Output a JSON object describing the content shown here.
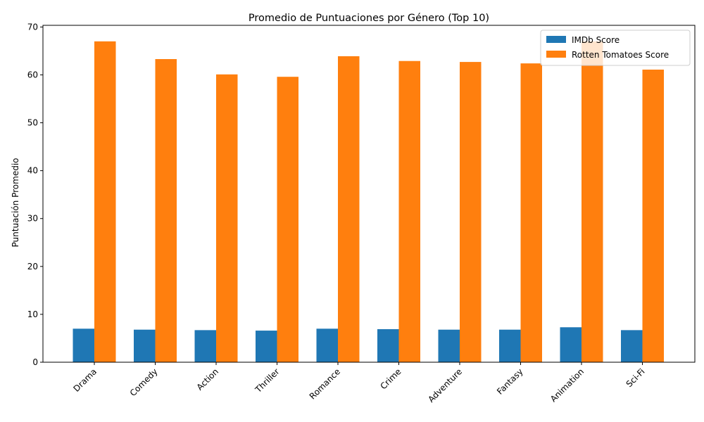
{
  "chart_data": {
    "type": "bar",
    "title": "Promedio de Puntuaciones por Género (Top 10)",
    "xlabel": "",
    "ylabel": "Puntuación Promedio",
    "categories": [
      "Drama",
      "Comedy",
      "Action",
      "Thriller",
      "Romance",
      "Crime",
      "Adventure",
      "Fantasy",
      "Animation",
      "Sci-Fi"
    ],
    "series": [
      {
        "name": "IMDb Score",
        "color": "#1f77b4",
        "values": [
          7.0,
          6.8,
          6.7,
          6.6,
          7.0,
          6.9,
          6.8,
          6.8,
          7.3,
          6.7
        ]
      },
      {
        "name": "Rotten Tomatoes Score",
        "color": "#ff7f0e",
        "values": [
          67.0,
          63.3,
          60.1,
          59.6,
          63.9,
          62.9,
          62.7,
          62.4,
          67.0,
          61.1
        ]
      }
    ],
    "ylim": [
      0,
      70.35
    ],
    "yticks": [
      0,
      10,
      20,
      30,
      40,
      50,
      60,
      70
    ],
    "legend": "top-right",
    "grid": false
  }
}
